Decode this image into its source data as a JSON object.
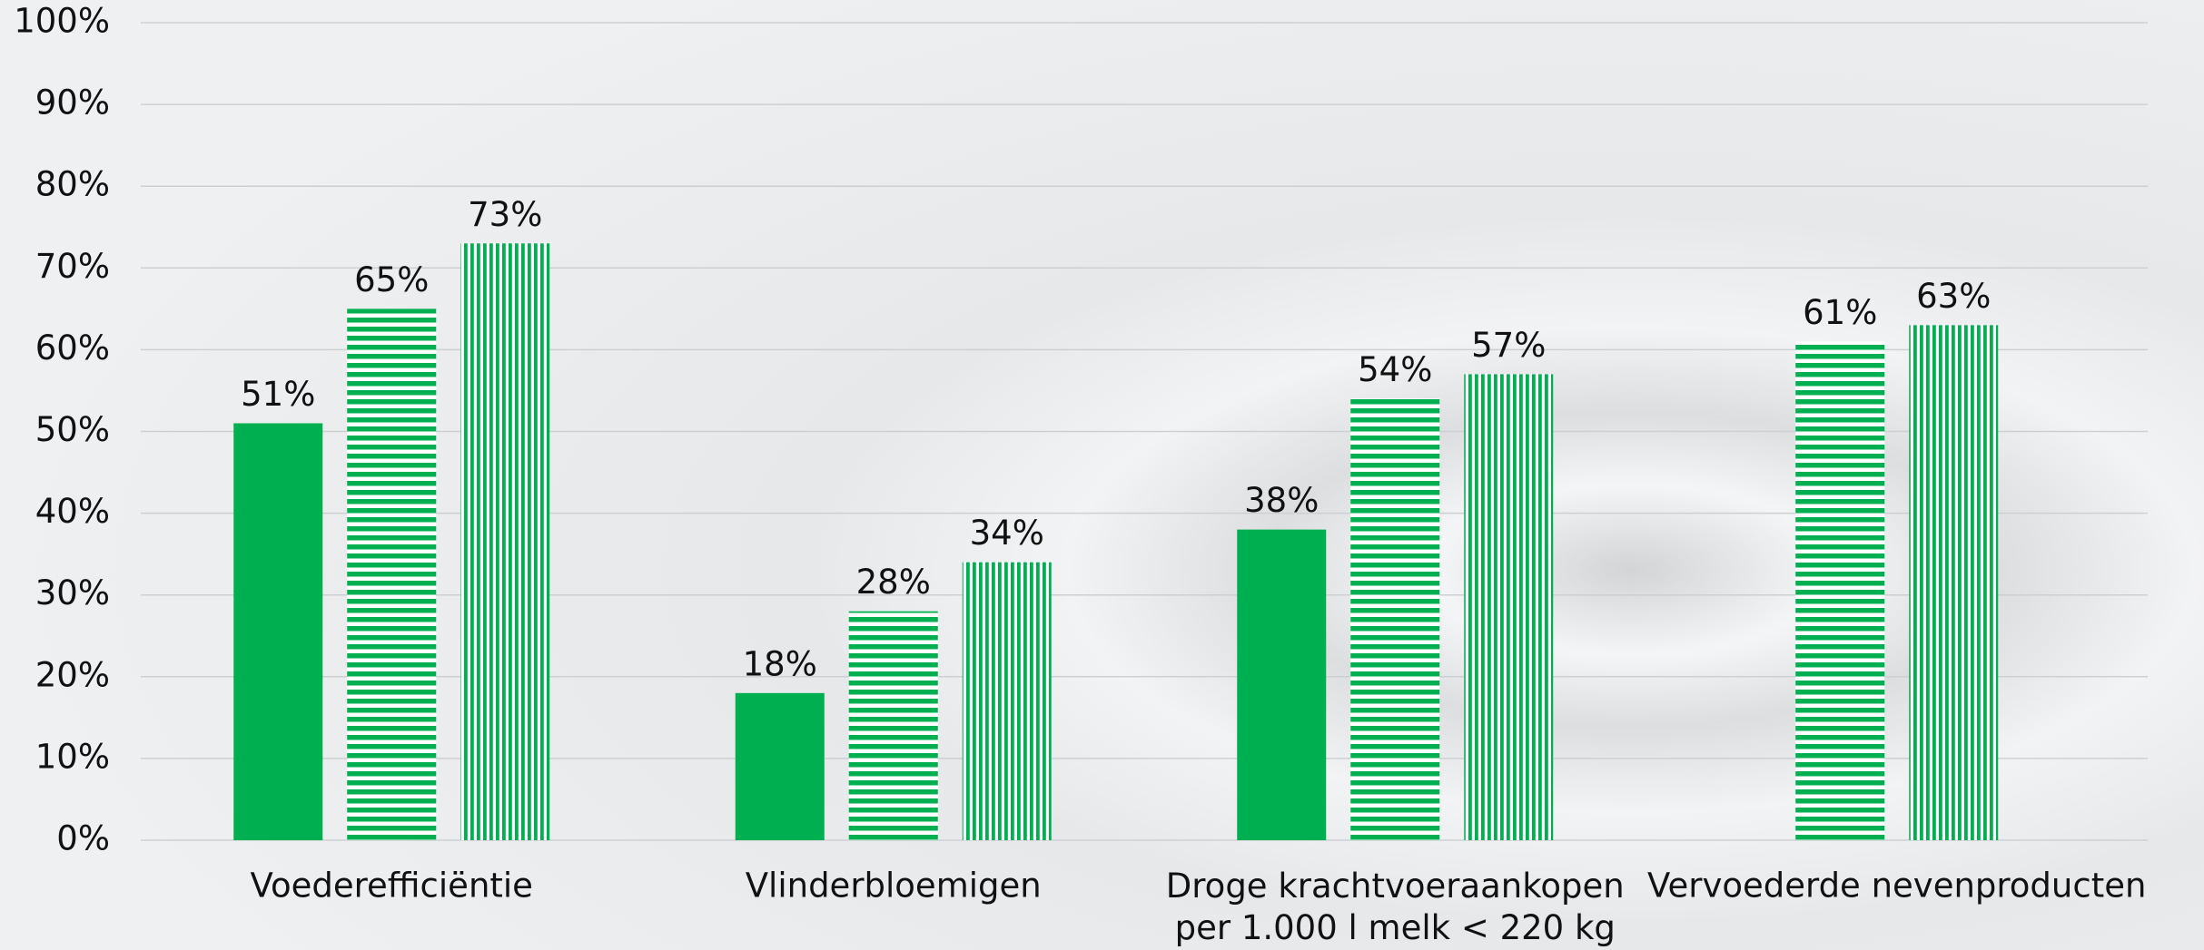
{
  "chart_data": {
    "type": "bar",
    "categories": [
      "Voederefficiëntie",
      "Vlinderbloemigen",
      "Droge krachtvoeraankopen\nper 1.000 l melk < 220 kg",
      "Vervoederde nevenproducten"
    ],
    "series": [
      {
        "color": "#00b050",
        "fill": "solid",
        "values": [
          51,
          18,
          38,
          null
        ],
        "value_labels": [
          "51%",
          "18%",
          "38%",
          null
        ]
      },
      {
        "color": "#00b050",
        "fill": "horizontal-stripes",
        "values": [
          65,
          28,
          54,
          61
        ],
        "value_labels": [
          "65%",
          "28%",
          "54%",
          "61%"
        ]
      },
      {
        "color": "#00b050",
        "fill": "vertical-stripes",
        "values": [
          73,
          34,
          57,
          63
        ],
        "value_labels": [
          "73%",
          "34%",
          "57%",
          "63%"
        ]
      }
    ],
    "ylim": [
      0,
      100
    ],
    "yticks": [
      {
        "value": 0,
        "label": "0%"
      },
      {
        "value": 10,
        "label": "10%"
      },
      {
        "value": 20,
        "label": "20%"
      },
      {
        "value": 30,
        "label": "30%"
      },
      {
        "value": 40,
        "label": "40%"
      },
      {
        "value": 50,
        "label": "50%"
      },
      {
        "value": 60,
        "label": "60%"
      },
      {
        "value": 70,
        "label": "70%"
      },
      {
        "value": 80,
        "label": "80%"
      },
      {
        "value": 90,
        "label": "90%"
      },
      {
        "value": 100,
        "label": "100%"
      }
    ],
    "grid": true
  }
}
